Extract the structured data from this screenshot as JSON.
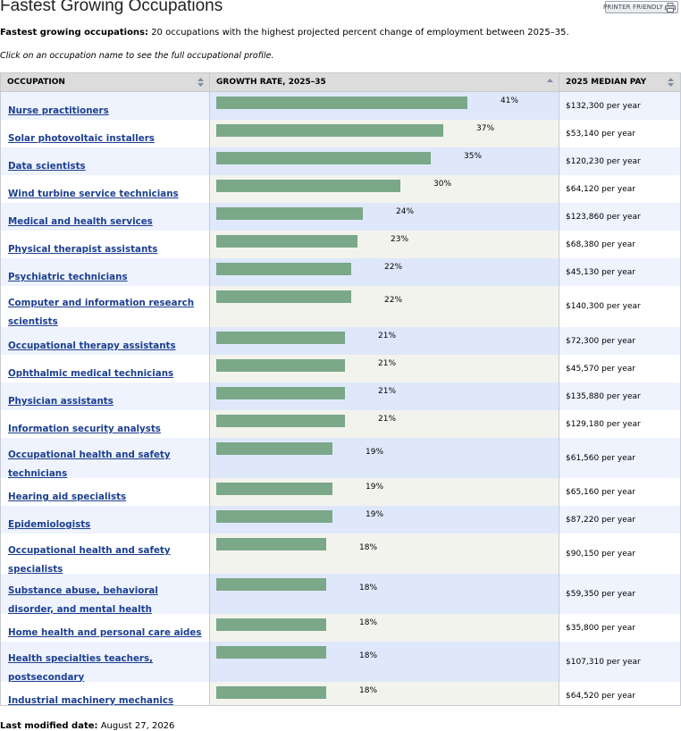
{
  "title": "Fastest Growing Occupations",
  "printer_friendly": "PRINTER FRIENDLY",
  "intro_bold": "Fastest growing occupations:",
  "intro_text": " 20 occupations with the highest projected percent change of employment between 2025–35.",
  "note": "Click on an occupation name to see the full occupational profile.",
  "columns": {
    "occupation": "OCCUPATION",
    "growth": "GROWTH RATE, 2025–35",
    "pay": "2025 MEDIAN PAY"
  },
  "rows": [
    {
      "name": "Nurse practitioners",
      "growth": 41,
      "growth_label": "41%",
      "pay": "$132,300 per year"
    },
    {
      "name": "Solar photovoltaic installers",
      "growth": 37,
      "growth_label": "37%",
      "pay": "$53,140 per year"
    },
    {
      "name": "Data scientists",
      "growth": 35,
      "growth_label": "35%",
      "pay": "$120,230 per year"
    },
    {
      "name": "Wind turbine service technicians",
      "growth": 30,
      "growth_label": "30%",
      "pay": "$64,120 per year"
    },
    {
      "name": "Medical and health services managers",
      "growth": 24,
      "growth_label": "24%",
      "pay": "$123,860 per year"
    },
    {
      "name": "Physical therapist assistants",
      "growth": 23,
      "growth_label": "23%",
      "pay": "$68,380 per year"
    },
    {
      "name": "Psychiatric technicians",
      "growth": 22,
      "growth_label": "22%",
      "pay": "$45,130 per year"
    },
    {
      "name": "Computer and information research scientists",
      "growth": 22,
      "growth_label": "22%",
      "pay": "$140,300 per year"
    },
    {
      "name": "Occupational therapy assistants",
      "growth": 21,
      "growth_label": "21%",
      "pay": "$72,300 per year"
    },
    {
      "name": "Ophthalmic medical technicians",
      "growth": 21,
      "growth_label": "21%",
      "pay": "$45,570 per year"
    },
    {
      "name": "Physician assistants",
      "growth": 21,
      "growth_label": "21%",
      "pay": "$135,880 per year"
    },
    {
      "name": "Information security analysts",
      "growth": 21,
      "growth_label": "21%",
      "pay": "$129,180 per year"
    },
    {
      "name": "Occupational health and safety technicians",
      "growth": 19,
      "growth_label": "19%",
      "pay": "$61,560 per year"
    },
    {
      "name": "Hearing aid specialists",
      "growth": 19,
      "growth_label": "19%",
      "pay": "$65,160 per year"
    },
    {
      "name": "Epidemiologists",
      "growth": 19,
      "growth_label": "19%",
      "pay": "$87,220 per year"
    },
    {
      "name": "Occupational health and safety specialists",
      "growth": 18,
      "growth_label": "18%",
      "pay": "$90,150 per year"
    },
    {
      "name": "Substance abuse, behavioral disorder, and mental health counselors",
      "growth": 18,
      "growth_label": "18%",
      "pay": "$59,350 per year"
    },
    {
      "name": "Home health and personal care aides",
      "growth": 18,
      "growth_label": "18%",
      "pay": "$35,800 per year"
    },
    {
      "name": "Health specialties teachers, postsecondary",
      "growth": 18,
      "growth_label": "18%",
      "pay": "$107,310 per year"
    },
    {
      "name": "Industrial machinery mechanics",
      "growth": 18,
      "growth_label": "18%",
      "pay": "$64,520 per year"
    }
  ],
  "footer_label": "Last modified date:",
  "footer_date": " August 27, 2026",
  "colors": {
    "bar": "#7aa889",
    "link": "#1c3f8f",
    "row_alt": "#eef3fe",
    "bar_col_alt": "#dfe8fb",
    "bar_col_plain": "#f3f3ee",
    "header": "#dcdcdc"
  },
  "icons": {
    "printer": "printer-icon",
    "sort": "sort-arrows-icon"
  }
}
